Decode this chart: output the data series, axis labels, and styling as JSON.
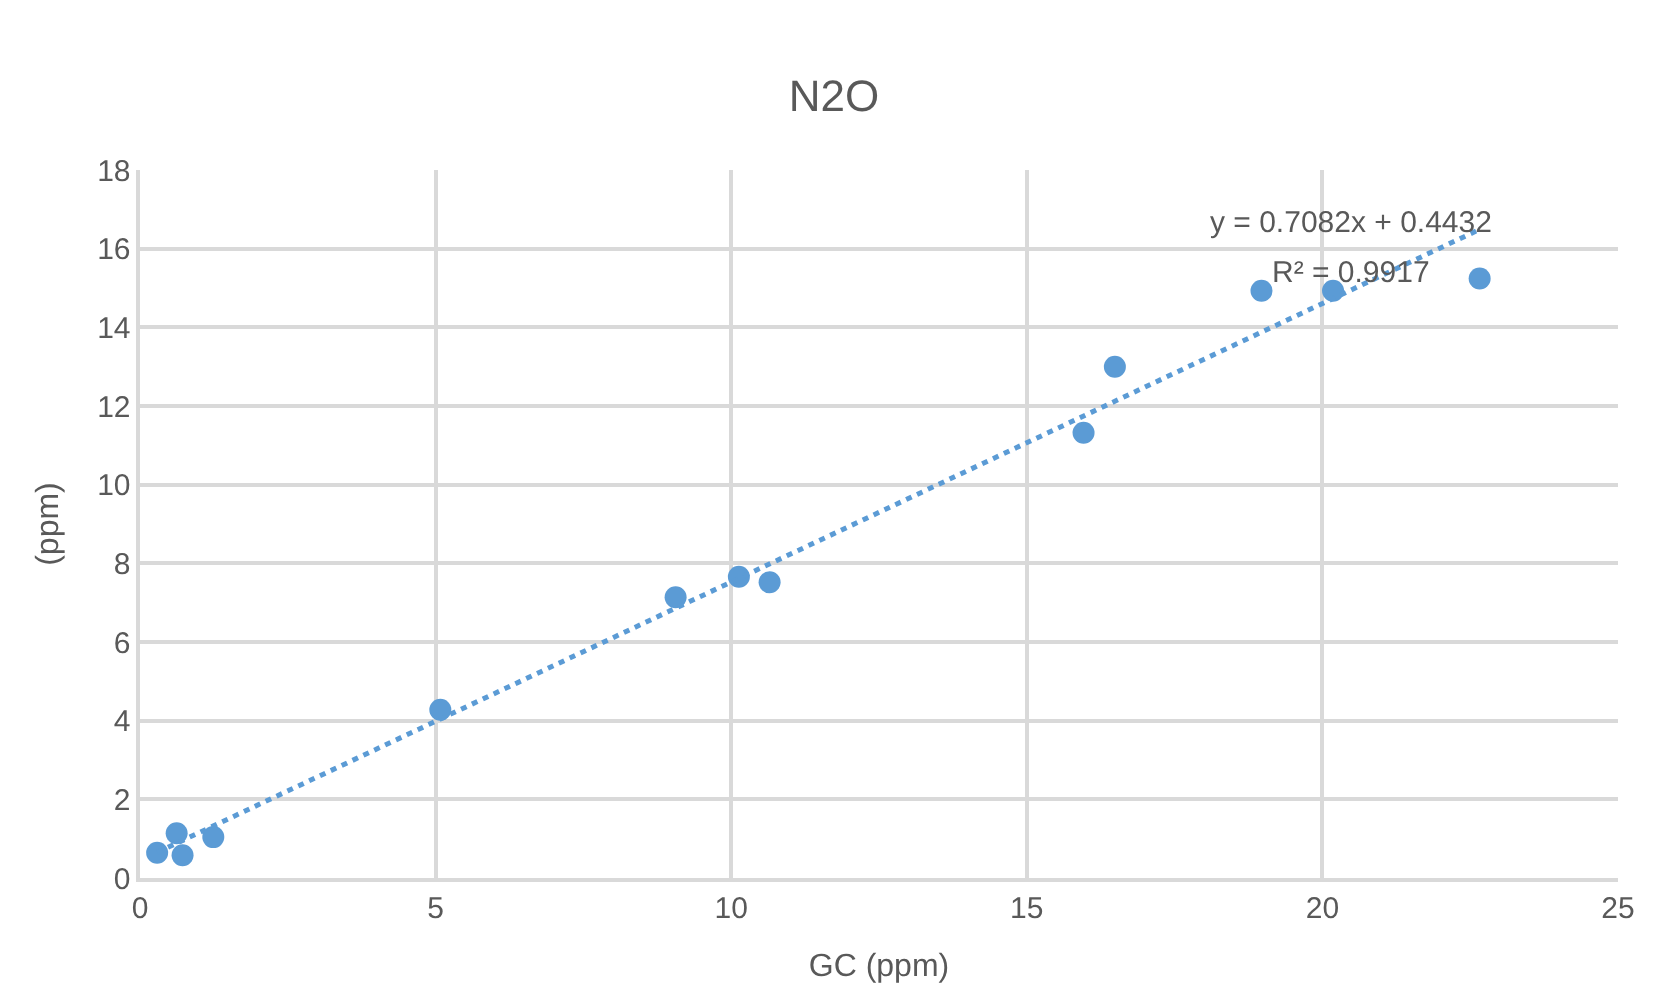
{
  "chart_data": {
    "type": "scatter",
    "title": "N2O",
    "xlabel": "GC (ppm)",
    "ylabel": "(ppm)",
    "xlim": [
      0,
      25
    ],
    "xticks": [
      0,
      5,
      10,
      15,
      20,
      25
    ],
    "ylim": [
      0,
      18
    ],
    "yticks": [
      0,
      2,
      4,
      6,
      8,
      10,
      12,
      14,
      16,
      18
    ],
    "grid": true,
    "marker": "circle",
    "series": [
      {
        "color": "#5b9bd5",
        "x": [
          0.29,
          0.62,
          0.72,
          1.24,
          5.08,
          9.06,
          10.13,
          10.65,
          15.96,
          16.49,
          18.97,
          20.18,
          22.66
        ],
        "values": [
          0.64,
          1.14,
          0.58,
          1.04,
          4.28,
          7.14,
          7.66,
          7.52,
          11.32,
          13.0,
          14.93,
          14.93,
          15.24
        ]
      },
      {
        "type": "line",
        "color": "#5b9bd5",
        "line_style": "dotted",
        "marker": "none",
        "x": [
          0.29,
          22.66
        ],
        "values": [
          0.65,
          16.49
        ]
      }
    ],
    "annotations": [
      "y = 0.7082x + 0.4432",
      "R² = 0.9917"
    ]
  }
}
